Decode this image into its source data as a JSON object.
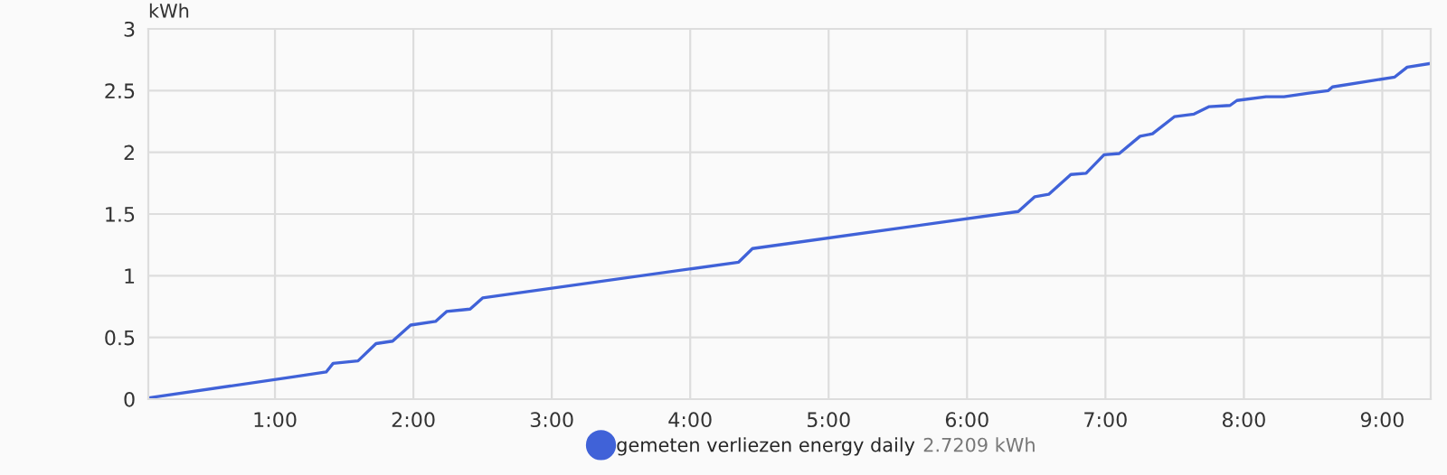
{
  "chart_data": {
    "type": "line",
    "ylabel": "kWh",
    "x": [
      0.085,
      1.13,
      1.37,
      1.42,
      1.6,
      1.73,
      1.85,
      1.98,
      2.16,
      2.24,
      2.41,
      2.5,
      4.35,
      4.45,
      6.37,
      6.49,
      6.59,
      6.75,
      6.86,
      6.99,
      7.1,
      7.25,
      7.34,
      7.5,
      7.64,
      7.75,
      7.9,
      7.95,
      8.16,
      8.29,
      8.47,
      8.61,
      8.64,
      9.09,
      9.18,
      9.35
    ],
    "series": [
      {
        "name": "gemeten verliezen energy daily",
        "color": "#4062d8",
        "values": [
          0.01,
          0.18,
          0.22,
          0.29,
          0.31,
          0.45,
          0.47,
          0.6,
          0.63,
          0.71,
          0.73,
          0.82,
          1.11,
          1.22,
          1.52,
          1.64,
          1.66,
          1.82,
          1.83,
          1.98,
          1.99,
          2.13,
          2.15,
          2.29,
          2.31,
          2.37,
          2.38,
          2.42,
          2.45,
          2.45,
          2.48,
          2.5,
          2.53,
          2.61,
          2.69,
          2.72
        ]
      }
    ],
    "xlim": [
      0.085,
      9.35
    ],
    "ylim": [
      0,
      3
    ],
    "xticks": [
      {
        "value": 1,
        "label": "1:00"
      },
      {
        "value": 2,
        "label": "2:00"
      },
      {
        "value": 3,
        "label": "3:00"
      },
      {
        "value": 4,
        "label": "4:00"
      },
      {
        "value": 5,
        "label": "5:00"
      },
      {
        "value": 6,
        "label": "6:00"
      },
      {
        "value": 7,
        "label": "7:00"
      },
      {
        "value": 8,
        "label": "8:00"
      },
      {
        "value": 9,
        "label": "9:00"
      }
    ],
    "yticks": [
      0,
      0.5,
      1,
      1.5,
      2,
      2.5,
      3
    ],
    "grid": true,
    "legend": "bottom",
    "marker": "none",
    "line_style": "solid",
    "annotations": [
      "2.7209 kWh"
    ]
  }
}
